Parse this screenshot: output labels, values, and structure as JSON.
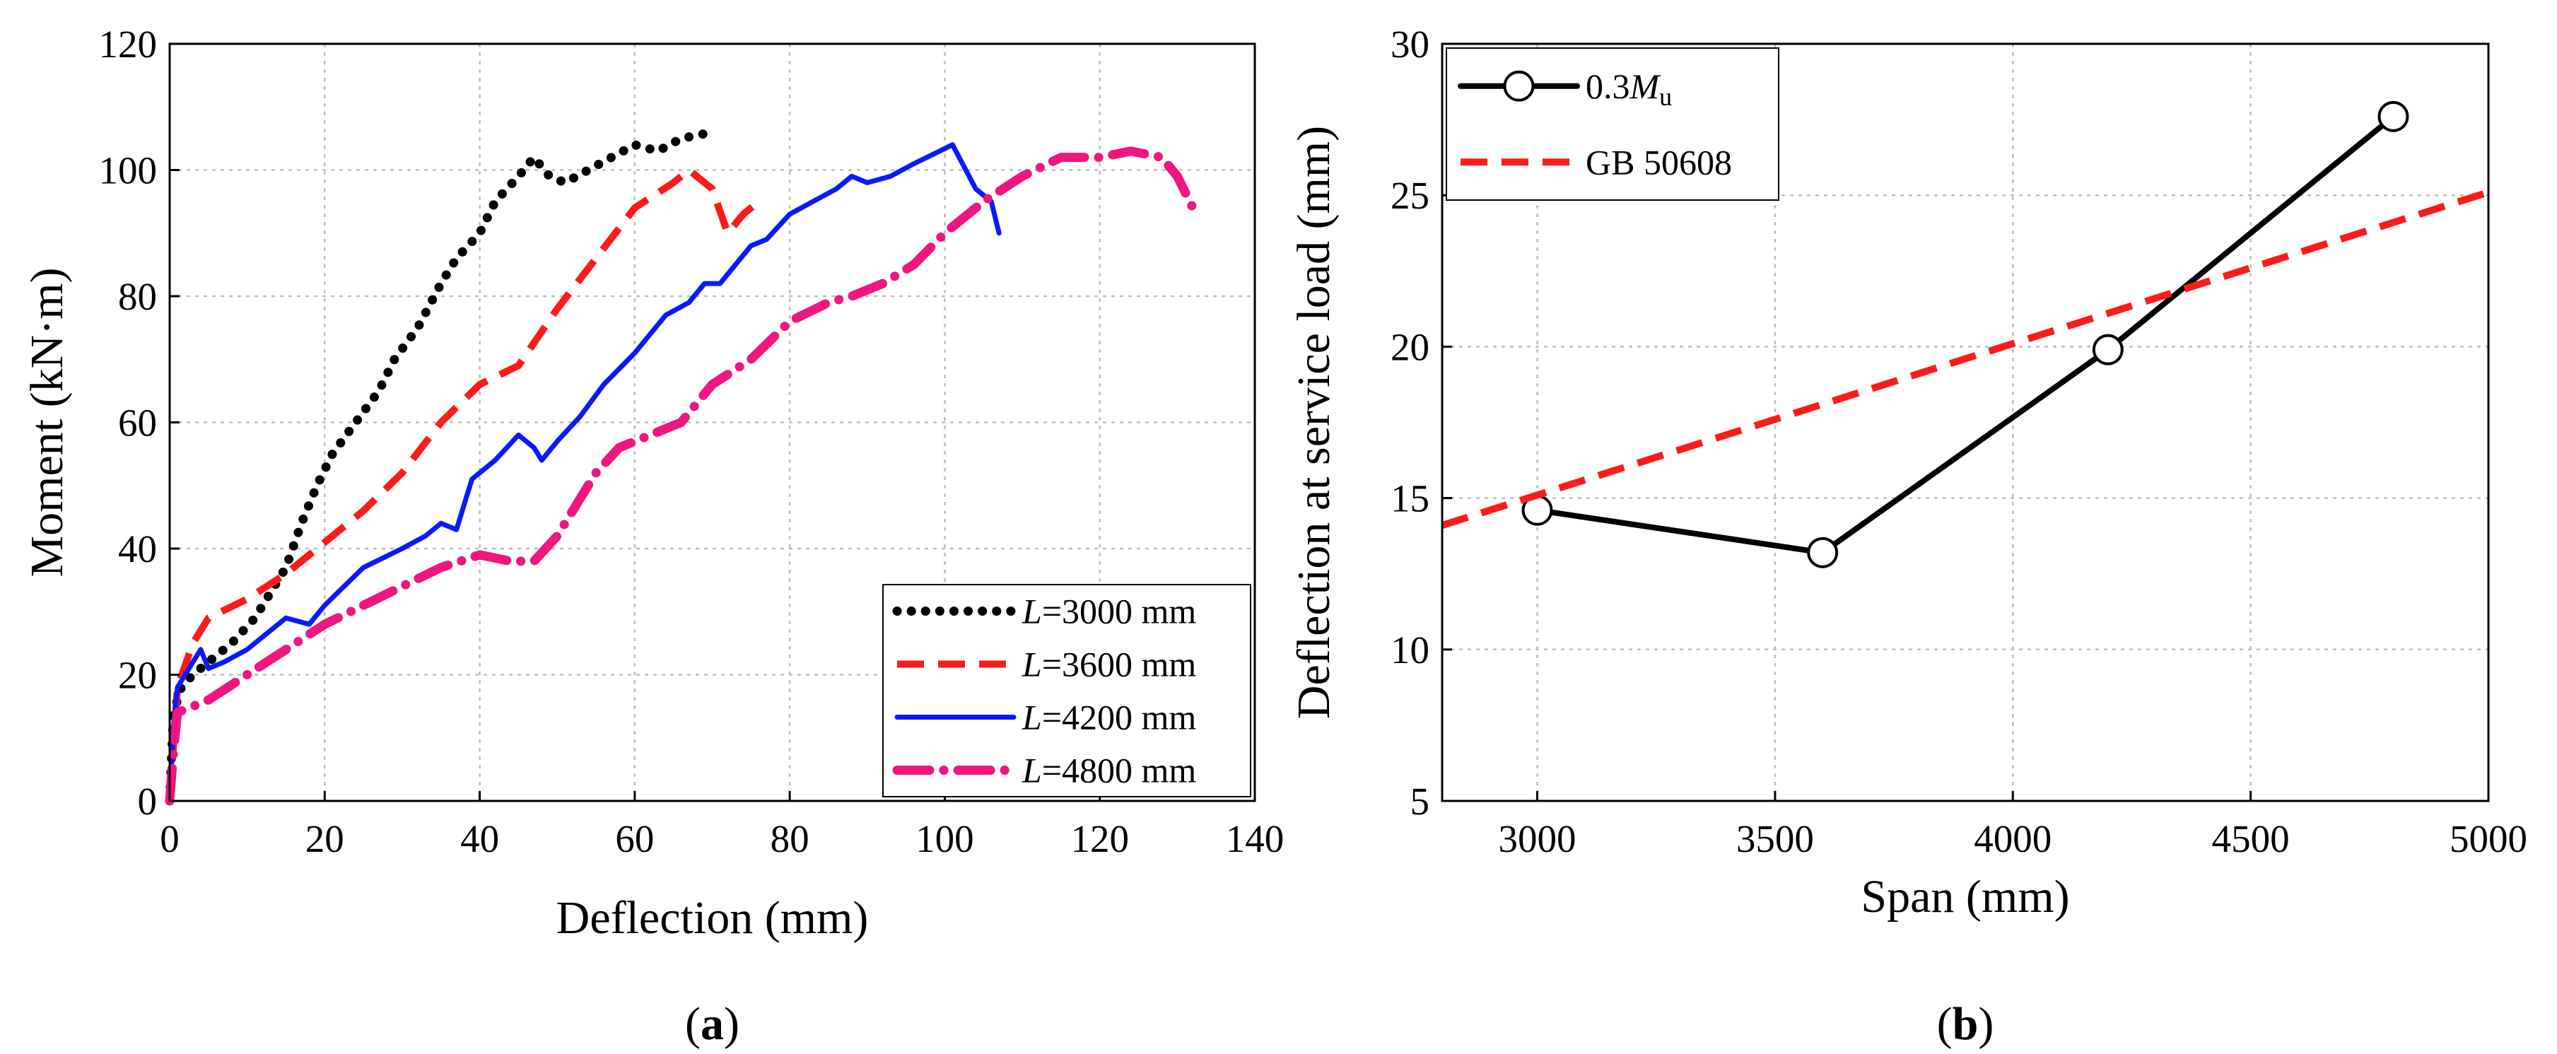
{
  "chart_data": [
    {
      "type": "line",
      "panel_label_pre": "(",
      "panel_label_letter": "a",
      "panel_label_post": ")",
      "xlabel": "Deflection (mm)",
      "ylabel": "Moment (kN·m)",
      "xlim": [
        0,
        140
      ],
      "ylim": [
        0,
        120
      ],
      "xticks": [
        0,
        20,
        40,
        60,
        80,
        100,
        120,
        140
      ],
      "yticks": [
        0,
        20,
        40,
        60,
        80,
        100,
        120
      ],
      "grid": true,
      "legend_position": "bottom-right",
      "series": [
        {
          "name": "L=3000 mm",
          "legend_prefix": "L",
          "legend_suffix": "=3000 mm",
          "color": "#000000",
          "style": "dotted",
          "points": [
            [
              0,
              0
            ],
            [
              0.5,
              14
            ],
            [
              1.5,
              18
            ],
            [
              3,
              20
            ],
            [
              5,
              22
            ],
            [
              8,
              25
            ],
            [
              11,
              29
            ],
            [
              13,
              33
            ],
            [
              15,
              37
            ],
            [
              17,
              44
            ],
            [
              19,
              50
            ],
            [
              21,
              55
            ],
            [
              24,
              60
            ],
            [
              27,
              65
            ],
            [
              29,
              70
            ],
            [
              32,
              75
            ],
            [
              35,
              82
            ],
            [
              37,
              86
            ],
            [
              40,
              90
            ],
            [
              42,
              95
            ],
            [
              45,
              99
            ],
            [
              47,
              102
            ],
            [
              49,
              99
            ],
            [
              51,
              98
            ],
            [
              54,
              100
            ],
            [
              57,
              102
            ],
            [
              60,
              104
            ],
            [
              63,
              103
            ],
            [
              66,
              105
            ],
            [
              70,
              106
            ]
          ]
        },
        {
          "name": "L=3600 mm",
          "legend_prefix": "L",
          "legend_suffix": "=3600 mm",
          "color": "#ff1a1a",
          "style": "dashed",
          "points": [
            [
              0,
              0
            ],
            [
              1,
              18
            ],
            [
              3,
              25
            ],
            [
              5,
              29
            ],
            [
              10,
              32
            ],
            [
              15,
              36
            ],
            [
              20,
              41
            ],
            [
              25,
              46
            ],
            [
              30,
              52
            ],
            [
              35,
              60
            ],
            [
              40,
              66
            ],
            [
              45,
              69
            ],
            [
              50,
              78
            ],
            [
              55,
              86
            ],
            [
              60,
              94
            ],
            [
              65,
              98
            ],
            [
              67,
              100
            ],
            [
              70,
              97
            ],
            [
              72,
              90
            ],
            [
              74,
              93
            ],
            [
              76,
              95
            ]
          ]
        },
        {
          "name": "L=4200 mm",
          "legend_prefix": "L",
          "legend_suffix": "=4200 mm",
          "color": "#0a1aff",
          "style": "solid",
          "points": [
            [
              0,
              0
            ],
            [
              0.5,
              12
            ],
            [
              1,
              18
            ],
            [
              3,
              22
            ],
            [
              4,
              24
            ],
            [
              5,
              21
            ],
            [
              7,
              22
            ],
            [
              10,
              24
            ],
            [
              13,
              27
            ],
            [
              15,
              29
            ],
            [
              18,
              28
            ],
            [
              20,
              31
            ],
            [
              25,
              37
            ],
            [
              30,
              40
            ],
            [
              33,
              42
            ],
            [
              35,
              44
            ],
            [
              37,
              43
            ],
            [
              39,
              51
            ],
            [
              42,
              54
            ],
            [
              45,
              58
            ],
            [
              47,
              56
            ],
            [
              48,
              54
            ],
            [
              50,
              57
            ],
            [
              53,
              61
            ],
            [
              56,
              66
            ],
            [
              60,
              71
            ],
            [
              64,
              77
            ],
            [
              67,
              79
            ],
            [
              69,
              82
            ],
            [
              71,
              82
            ],
            [
              73,
              85
            ],
            [
              75,
              88
            ],
            [
              77,
              89
            ],
            [
              80,
              93
            ],
            [
              83,
              95
            ],
            [
              86,
              97
            ],
            [
              88,
              99
            ],
            [
              90,
              98
            ],
            [
              93,
              99
            ],
            [
              96,
              101
            ],
            [
              101,
              104
            ],
            [
              104,
              97
            ],
            [
              106,
              95
            ],
            [
              107,
              90
            ]
          ]
        },
        {
          "name": "L=4800 mm",
          "legend_prefix": "L",
          "legend_suffix": "=4800 mm",
          "color": "#f0157f",
          "style": "dashdot",
          "points": [
            [
              0,
              0
            ],
            [
              0.5,
              8
            ],
            [
              1,
              14
            ],
            [
              5,
              16
            ],
            [
              10,
              20
            ],
            [
              15,
              24
            ],
            [
              20,
              28
            ],
            [
              25,
              31
            ],
            [
              30,
              34
            ],
            [
              35,
              37
            ],
            [
              40,
              39
            ],
            [
              44,
              38
            ],
            [
              47,
              38
            ],
            [
              50,
              42
            ],
            [
              55,
              52
            ],
            [
              58,
              56
            ],
            [
              62,
              58
            ],
            [
              66,
              60
            ],
            [
              70,
              66
            ],
            [
              75,
              70
            ],
            [
              80,
              76
            ],
            [
              85,
              79
            ],
            [
              88,
              80
            ],
            [
              92,
              82
            ],
            [
              96,
              85
            ],
            [
              100,
              90
            ],
            [
              105,
              95
            ],
            [
              110,
              99
            ],
            [
              115,
              102
            ],
            [
              120,
              102
            ],
            [
              124,
              103
            ],
            [
              128,
              102
            ],
            [
              130,
              99
            ],
            [
              132,
              94
            ]
          ]
        }
      ]
    },
    {
      "type": "line",
      "panel_label_pre": "(",
      "panel_label_letter": "b",
      "panel_label_post": ")",
      "xlabel": "Span (mm)",
      "ylabel": "Deflection at  service load (mm)",
      "xlim": [
        2800,
        5000
      ],
      "ylim": [
        5,
        30
      ],
      "xticks": [
        3000,
        3500,
        4000,
        4500,
        5000
      ],
      "yticks": [
        5,
        10,
        15,
        20,
        25,
        30
      ],
      "grid": true,
      "legend_position": "top-left",
      "series": [
        {
          "name": "0.3Mu",
          "legend_prefix": "0.3",
          "legend_italic": "M",
          "legend_sub": "u",
          "color": "#000000",
          "style": "solid-marker",
          "points": [
            [
              3000,
              14.6
            ],
            [
              3600,
              13.2
            ],
            [
              4200,
              19.9
            ],
            [
              4800,
              27.6
            ]
          ]
        },
        {
          "name": "GB 50608",
          "legend_prefix": "GB 50608",
          "color": "#ff1a1a",
          "style": "dashed",
          "points": [
            [
              2800,
              14.1
            ],
            [
              5000,
              25.1
            ]
          ]
        }
      ]
    }
  ]
}
